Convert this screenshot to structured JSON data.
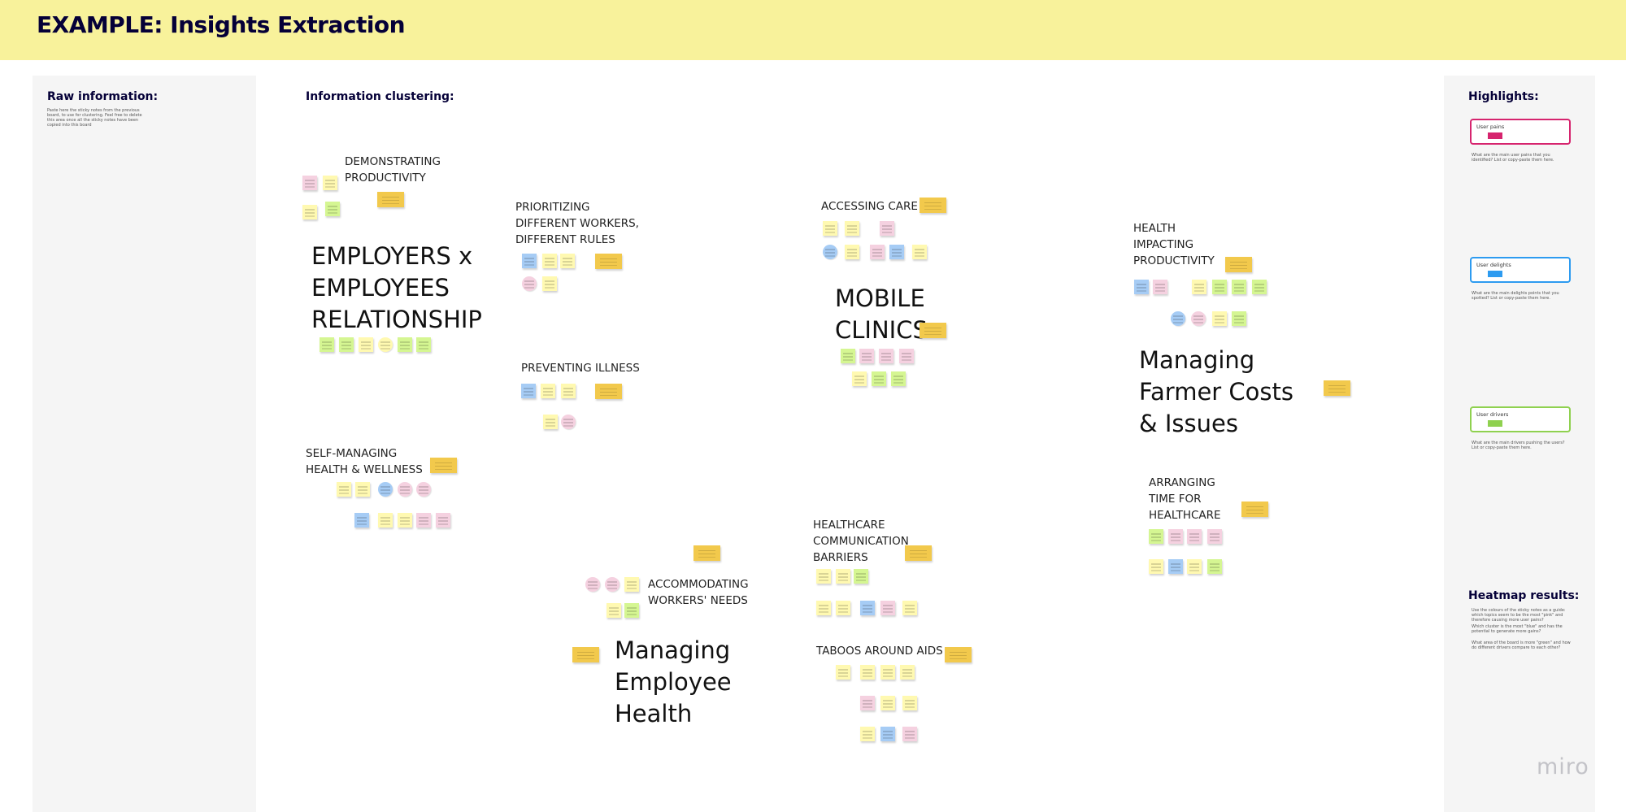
{
  "header": {
    "title": "EXAMPLE: Insights Extraction",
    "bg_color": "#f8f29b"
  },
  "raw_panel": {
    "title": "Raw information:",
    "instructions": "Paste here the sticky notes from the previous board, to use for clustering. Feel free to delete this area once all the sticky notes have been copied into this board"
  },
  "clustering": {
    "title": "Information clustering:",
    "clusters": [
      "DEMONSTRATING\nPRODUCTIVITY",
      "PRIORITIZING\nDIFFERENT WORKERS,\nDIFFERENT RULES",
      "ACCESSING CARE",
      "HEALTH\nIMPACTING\nPRODUCTIVITY",
      "PREVENTING ILLNESS",
      "SELF-MANAGING\nHEALTH & WELLNESS",
      "ARRANGING\nTIME FOR\nHEALTHCARE",
      "HEALTHCARE\nCOMMUNICATION\nBARRIERS",
      "ACCOMMODATING\nWORKERS' NEEDS",
      "TABOOS AROUND AIDS"
    ],
    "themes": [
      "EMPLOYERS x\nEMPLOYEES\nRELATIONSHIP",
      "MOBILE\nCLINICS",
      "Managing\nFarmer Costs\n& Issues",
      "Managing\nEmployee\nHealth"
    ]
  },
  "highlights": {
    "title": "Highlights:",
    "pains": {
      "label": "User pains",
      "color": "#d6246e",
      "prompt": "What are the main user pains that you identified? List or copy-paste them here."
    },
    "delights": {
      "label": "User delights",
      "color": "#2d9bf0",
      "prompt": "What are the main delights points that you spotted? List or copy-paste them here."
    },
    "drivers": {
      "label": "User drivers",
      "color": "#8fd14f",
      "prompt": "What are the main drivers pushing the users? List or copy-paste them here."
    }
  },
  "heatmap": {
    "title": "Heatmap results:",
    "lines": [
      "Use the colours of the sticky notes as a guide: which topics seem to be the most \"pink\" and therefore causing more user pains?",
      "Which cluster is the most \"blue\" and has the potential to generate more gains?",
      "What area of the board is more \"green\" and how do different drivers compare to each other?"
    ]
  },
  "colors": {
    "note_yellow": "#fff9b1",
    "note_pink": "#f5d1e0",
    "note_green": "#d5f692",
    "note_blue": "#a6ccf5",
    "note_orange": "#f2c94c"
  },
  "logo": {
    "text": "miro"
  }
}
